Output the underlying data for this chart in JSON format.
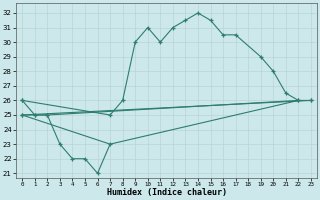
{
  "xlabel": "Humidex (Indice chaleur)",
  "line_color": "#2e7d6e",
  "bg_color": "#cce8ea",
  "grid_color": "#b8d4d4",
  "ylim": [
    20.7,
    32.7
  ],
  "xlim": [
    -0.5,
    23.5
  ],
  "yticks": [
    21,
    22,
    23,
    24,
    25,
    26,
    27,
    28,
    29,
    30,
    31,
    32
  ],
  "xticks": [
    0,
    1,
    2,
    3,
    4,
    5,
    6,
    7,
    8,
    9,
    10,
    11,
    12,
    13,
    14,
    15,
    16,
    17,
    18,
    19,
    20,
    21,
    22,
    23
  ],
  "lines": [
    {
      "x": [
        0,
        1,
        2,
        22,
        23
      ],
      "y": [
        26,
        25,
        25,
        26,
        26
      ],
      "marker": true
    },
    {
      "x": [
        0,
        1,
        2,
        3,
        4,
        5,
        6,
        7
      ],
      "y": [
        25,
        25,
        25,
        23,
        22,
        22,
        21,
        23
      ],
      "marker": true
    },
    {
      "x": [
        0,
        7,
        8,
        9,
        10,
        11,
        12,
        13,
        14,
        15,
        16,
        17,
        19,
        20,
        21,
        22
      ],
      "y": [
        26,
        25,
        26,
        30,
        31,
        30,
        31,
        31.5,
        32,
        31.5,
        30.5,
        30.5,
        29,
        28,
        26.5,
        26
      ],
      "marker": true
    },
    {
      "x": [
        0,
        23
      ],
      "y": [
        25,
        26
      ],
      "marker": true
    },
    {
      "x": [
        0,
        7,
        22
      ],
      "y": [
        25,
        23,
        26
      ],
      "marker": false
    }
  ]
}
